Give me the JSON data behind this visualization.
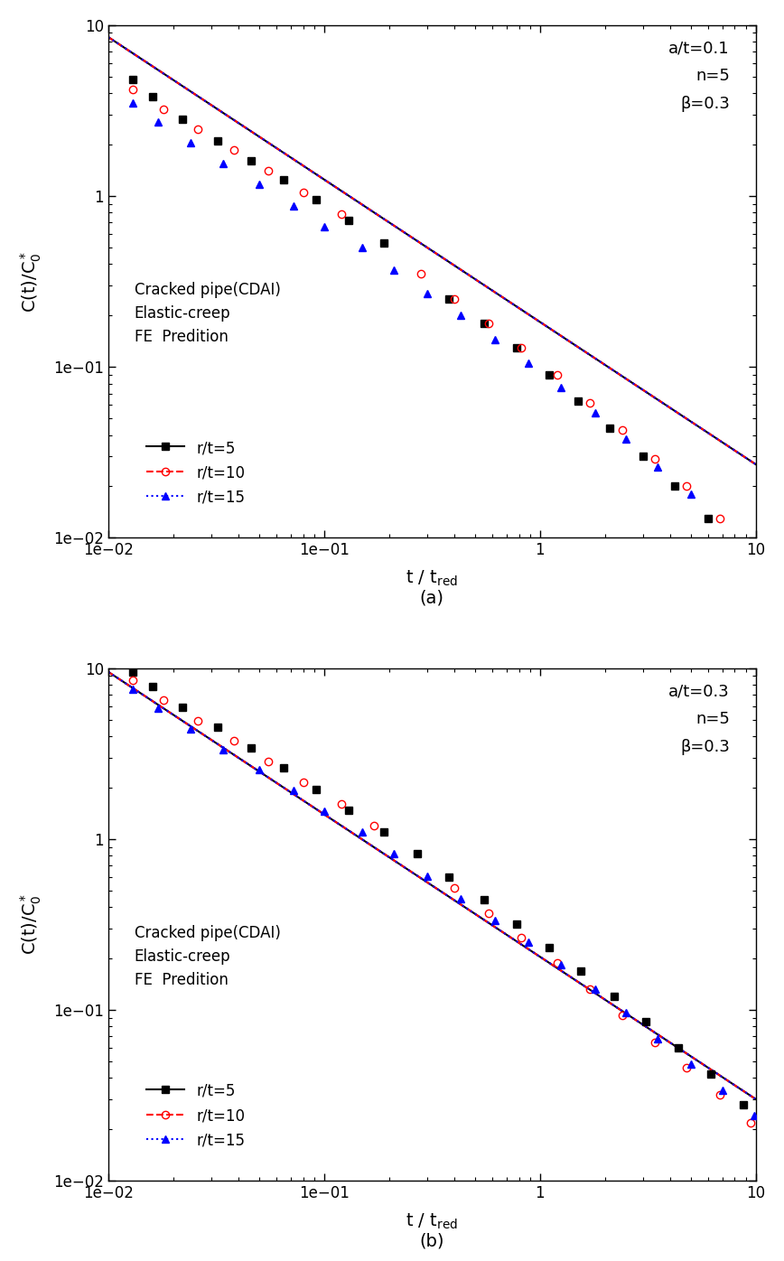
{
  "panels": [
    {
      "label": "(a)",
      "annotation": "a/t=0.1\nn=5\nβ=0.3",
      "scatter": [
        {
          "name": "r/t=5",
          "marker": "s",
          "color": "black",
          "mfc": "black",
          "x": [
            0.013,
            0.016,
            0.022,
            0.032,
            0.046,
            0.065,
            0.092,
            0.13,
            0.19,
            0.38,
            0.55,
            0.78,
            1.1,
            1.5,
            2.1,
            3.0,
            4.2,
            6.0
          ],
          "y": [
            4.8,
            3.8,
            2.8,
            2.1,
            1.6,
            1.25,
            0.95,
            0.72,
            0.53,
            0.25,
            0.18,
            0.13,
            0.09,
            0.063,
            0.044,
            0.03,
            0.02,
            0.013
          ]
        },
        {
          "name": "r/t=10",
          "marker": "o",
          "color": "red",
          "mfc": "none",
          "x": [
            0.013,
            0.018,
            0.026,
            0.038,
            0.055,
            0.08,
            0.12,
            0.28,
            0.4,
            0.58,
            0.82,
            1.2,
            1.7,
            2.4,
            3.4,
            4.8,
            6.8
          ],
          "y": [
            4.2,
            3.2,
            2.45,
            1.85,
            1.4,
            1.05,
            0.78,
            0.35,
            0.25,
            0.18,
            0.13,
            0.09,
            0.062,
            0.043,
            0.029,
            0.02,
            0.013
          ]
        },
        {
          "name": "r/t=15",
          "marker": "^",
          "color": "blue",
          "mfc": "blue",
          "x": [
            0.013,
            0.017,
            0.024,
            0.034,
            0.05,
            0.072,
            0.1,
            0.15,
            0.21,
            0.3,
            0.43,
            0.62,
            0.88,
            1.25,
            1.8,
            2.5,
            3.5,
            5.0
          ],
          "y": [
            3.5,
            2.7,
            2.05,
            1.55,
            1.17,
            0.88,
            0.66,
            0.5,
            0.37,
            0.27,
            0.2,
            0.145,
            0.105,
            0.076,
            0.054,
            0.038,
            0.026,
            0.018
          ]
        }
      ],
      "lines": [
        {
          "color": "black",
          "linestyle": "-",
          "x0": 0.01,
          "y0": 8.5,
          "x1": 10.0,
          "slope": -0.833
        },
        {
          "color": "red",
          "linestyle": "--",
          "x0": 0.01,
          "y0": 8.5,
          "x1": 10.0,
          "slope": -0.833
        },
        {
          "color": "blue",
          "linestyle": ":",
          "x0": 0.01,
          "y0": 8.5,
          "x1": 10.0,
          "slope": -0.833
        }
      ]
    },
    {
      "label": "(b)",
      "annotation": "a/t=0.3\nn=5\nβ=0.3",
      "scatter": [
        {
          "name": "r/t=5",
          "marker": "s",
          "color": "black",
          "mfc": "black",
          "x": [
            0.013,
            0.016,
            0.022,
            0.032,
            0.046,
            0.065,
            0.092,
            0.13,
            0.19,
            0.27,
            0.38,
            0.55,
            0.78,
            1.1,
            1.55,
            2.2,
            3.1,
            4.4,
            6.2,
            8.8
          ],
          "y": [
            9.5,
            7.8,
            5.9,
            4.5,
            3.4,
            2.6,
            1.95,
            1.48,
            1.1,
            0.82,
            0.6,
            0.44,
            0.32,
            0.233,
            0.168,
            0.12,
            0.085,
            0.06,
            0.042,
            0.028
          ]
        },
        {
          "name": "r/t=10",
          "marker": "o",
          "color": "red",
          "mfc": "none",
          "x": [
            0.013,
            0.018,
            0.026,
            0.038,
            0.055,
            0.08,
            0.12,
            0.17,
            0.4,
            0.58,
            0.82,
            1.2,
            1.7,
            2.4,
            3.4,
            4.8,
            6.8,
            9.5
          ],
          "y": [
            8.5,
            6.5,
            4.95,
            3.75,
            2.85,
            2.15,
            1.6,
            1.2,
            0.52,
            0.37,
            0.265,
            0.188,
            0.133,
            0.093,
            0.065,
            0.046,
            0.032,
            0.022
          ]
        },
        {
          "name": "r/t=15",
          "marker": "^",
          "color": "blue",
          "mfc": "blue",
          "x": [
            0.013,
            0.017,
            0.024,
            0.034,
            0.05,
            0.072,
            0.1,
            0.15,
            0.21,
            0.3,
            0.43,
            0.62,
            0.88,
            1.25,
            1.8,
            2.5,
            3.5,
            5.0,
            7.0,
            9.8
          ],
          "y": [
            7.5,
            5.8,
            4.4,
            3.35,
            2.55,
            1.93,
            1.45,
            1.1,
            0.82,
            0.61,
            0.45,
            0.335,
            0.248,
            0.183,
            0.133,
            0.096,
            0.068,
            0.048,
            0.034,
            0.024
          ]
        }
      ],
      "lines": [
        {
          "color": "black",
          "linestyle": "-",
          "x0": 0.01,
          "y0": 9.5,
          "x1": 10.0,
          "slope": -0.833
        },
        {
          "color": "red",
          "linestyle": "--",
          "x0": 0.01,
          "y0": 9.5,
          "x1": 10.0,
          "slope": -0.833
        },
        {
          "color": "blue",
          "linestyle": ":",
          "x0": 0.01,
          "y0": 9.5,
          "x1": 10.0,
          "slope": -0.833
        }
      ]
    }
  ],
  "xlabel": "t / t$_\\mathrm{red}$",
  "ylabel": "C(t)/C$_0^*$",
  "xlim": [
    0.01,
    10.0
  ],
  "ylim": [
    0.01,
    10.0
  ],
  "background_color": "#ffffff",
  "marker_size": 6,
  "line_width": 1.5,
  "legend_header": "Cracked pipe(CDAI)\nElastic-creep\nFE  Predition",
  "legend_entries": [
    {
      "label": "r/t=5",
      "marker": "s",
      "color": "black",
      "mfc": "black",
      "linestyle": "-"
    },
    {
      "label": "r/t=10",
      "marker": "o",
      "color": "red",
      "mfc": "none",
      "linestyle": "--"
    },
    {
      "label": "r/t=15",
      "marker": "^",
      "color": "blue",
      "mfc": "blue",
      "linestyle": ":"
    }
  ]
}
